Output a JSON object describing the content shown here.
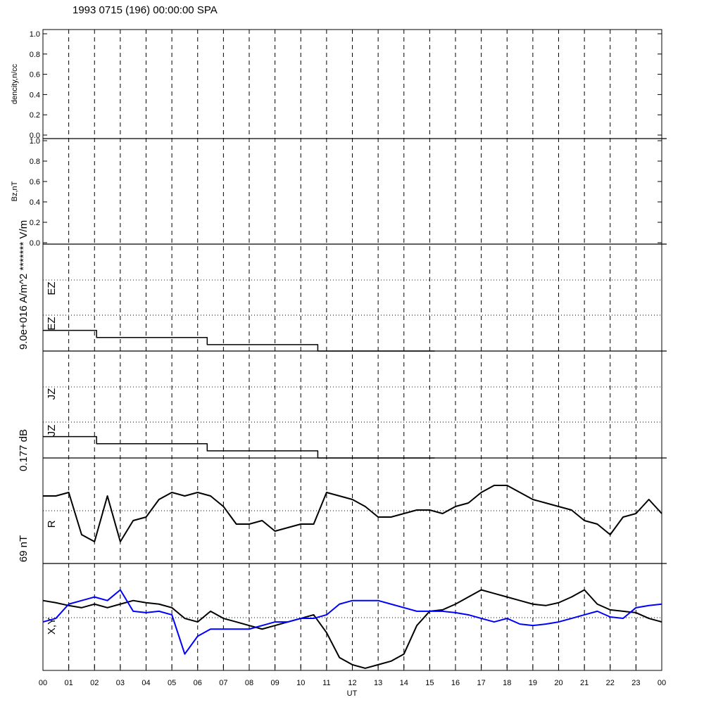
{
  "title": "1993 0715 (196) 00:00:00 SPA",
  "xaxis": {
    "label": "UT",
    "xlim": [
      0,
      24
    ],
    "xticks": [
      {
        "value": 0,
        "label": "00"
      },
      {
        "value": 1,
        "label": "01"
      },
      {
        "value": 2,
        "label": "02"
      },
      {
        "value": 3,
        "label": "03"
      },
      {
        "value": 4,
        "label": "04"
      },
      {
        "value": 5,
        "label": "05"
      },
      {
        "value": 6,
        "label": "06"
      },
      {
        "value": 7,
        "label": "07"
      },
      {
        "value": 8,
        "label": "08"
      },
      {
        "value": 9,
        "label": "09"
      },
      {
        "value": 10,
        "label": "10"
      },
      {
        "value": 11,
        "label": "11"
      },
      {
        "value": 12,
        "label": "12"
      },
      {
        "value": 13,
        "label": "13"
      },
      {
        "value": 14,
        "label": "14"
      },
      {
        "value": 15,
        "label": "15"
      },
      {
        "value": 16,
        "label": "16"
      },
      {
        "value": 17,
        "label": "17"
      },
      {
        "value": 18,
        "label": "18"
      },
      {
        "value": 19,
        "label": "19"
      },
      {
        "value": 20,
        "label": "20"
      },
      {
        "value": 21,
        "label": "21"
      },
      {
        "value": 22,
        "label": "22"
      },
      {
        "value": 23,
        "label": "23"
      },
      {
        "value": 24,
        "label": "00"
      }
    ]
  },
  "side_labels": [
    "9.0e+016 A/m^2 ******* V/m",
    "0.177 dB",
    "69 nT"
  ],
  "chart_data": [
    {
      "type": "line",
      "ylabel": "dencity,n/cc",
      "ylim": [
        0,
        1
      ],
      "yticks": [
        {
          "value": 0,
          "label": "0.0"
        },
        {
          "value": 0.2,
          "label": "0.2"
        },
        {
          "value": 0.4,
          "label": "0.4"
        },
        {
          "value": 0.6,
          "label": "0.6"
        },
        {
          "value": 0.8,
          "label": "0.8"
        },
        {
          "value": 1,
          "label": "1.0"
        }
      ]
    },
    {
      "type": "line",
      "ylabel": "Bz,nT",
      "ylim": [
        0,
        1
      ],
      "yticks": [
        {
          "value": 0,
          "label": "0.0"
        },
        {
          "value": 0.2,
          "label": "0.2"
        },
        {
          "value": 0.4,
          "label": "0.4"
        },
        {
          "value": 0.6,
          "label": "0.6"
        },
        {
          "value": 0.8,
          "label": "0.8"
        },
        {
          "value": 1,
          "label": "1.0"
        }
      ]
    },
    {
      "type": "line",
      "panel_labels": [
        "EZ",
        "EZ"
      ],
      "ylim": [
        0,
        3
      ],
      "x": [
        0,
        2.08,
        2.08,
        6.37,
        6.37,
        10.66,
        10.66,
        15.19
      ],
      "series": [
        {
          "color": "#000000",
          "values": [
            0.58,
            0.58,
            0.38,
            0.38,
            0.18,
            0.18,
            0,
            0
          ]
        }
      ]
    },
    {
      "type": "line",
      "panel_labels": [
        "JZ",
        "JZ"
      ],
      "ylim": [
        0,
        3
      ],
      "x": [
        0,
        2.08,
        2.08,
        6.37,
        6.37,
        10.66,
        10.66,
        15.19
      ],
      "series": [
        {
          "color": "#000000",
          "values": [
            0.6,
            0.6,
            0.4,
            0.4,
            0.2,
            0.2,
            0,
            0
          ]
        }
      ]
    },
    {
      "type": "line",
      "panel_labels": [
        "R"
      ],
      "ylim": [
        -75,
        75
      ],
      "x": [
        0,
        0.5,
        1,
        1.5,
        2,
        2.5,
        3,
        3.5,
        4,
        4.5,
        5,
        5.5,
        6,
        6.5,
        7,
        7.5,
        8,
        8.5,
        9,
        9.5,
        10,
        10.5,
        11,
        11.5,
        12,
        12.5,
        13,
        13.5,
        14,
        14.5,
        15,
        15.5,
        16,
        16.5,
        17,
        17.5,
        18,
        18.5,
        19,
        19.5,
        20,
        20.5,
        21,
        21.5,
        22,
        22.5,
        23,
        23.5,
        24
      ],
      "series": [
        {
          "color": "#000000",
          "values": [
            21,
            21,
            26,
            -34,
            -44,
            21,
            -44,
            -14,
            -9,
            16,
            26,
            21,
            26,
            21,
            6,
            -19,
            -19,
            -14,
            -29,
            -24,
            -19,
            -19,
            26,
            21,
            16,
            6,
            -9,
            -9,
            -4,
            1,
            1,
            -4,
            6,
            11,
            26,
            36,
            36,
            26,
            16,
            11,
            6,
            1,
            -14,
            -19,
            -34,
            -9,
            -4,
            16,
            -4
          ]
        }
      ]
    },
    {
      "type": "line",
      "panel_labels": [
        "X,Y"
      ],
      "ylim": [
        -75,
        75
      ],
      "x": [
        0,
        0.5,
        1,
        1.5,
        2,
        2.5,
        3,
        3.5,
        4,
        4.5,
        5,
        5.5,
        6,
        6.5,
        7,
        7.5,
        8,
        8.5,
        9,
        9.5,
        10,
        10.5,
        11,
        11.5,
        12,
        12.5,
        13,
        13.5,
        14,
        14.5,
        15,
        15.5,
        16,
        16.5,
        17,
        17.5,
        18,
        18.5,
        19,
        19.5,
        20,
        20.5,
        21,
        21.5,
        22,
        22.5,
        23,
        23.5,
        24
      ],
      "series": [
        {
          "color": "#000000",
          "values": [
            23,
            20,
            16,
            13,
            18,
            13,
            18,
            23,
            20,
            18,
            13,
            -2,
            -7,
            8,
            -2,
            -7,
            -12,
            -17,
            -12,
            -7,
            -2,
            3,
            -22,
            -57,
            -67,
            -72,
            -67,
            -62,
            -52,
            -12,
            8,
            10,
            18,
            28,
            38,
            33,
            28,
            23,
            18,
            16,
            20,
            28,
            38,
            18,
            10,
            8,
            6,
            -2,
            -7
          ]
        },
        {
          "color": "#0000ff",
          "values": [
            -7,
            -2,
            18,
            23,
            28,
            23,
            38,
            8,
            6,
            8,
            3,
            -52,
            -27,
            -17,
            -17,
            -17,
            -17,
            -12,
            -7,
            -7,
            -2,
            -2,
            3,
            18,
            23,
            23,
            23,
            18,
            13,
            8,
            8,
            8,
            6,
            3,
            -2,
            -7,
            -2,
            -10,
            -12,
            -10,
            -7,
            -2,
            3,
            8,
            0,
            -2,
            13,
            16,
            18
          ]
        }
      ]
    }
  ]
}
